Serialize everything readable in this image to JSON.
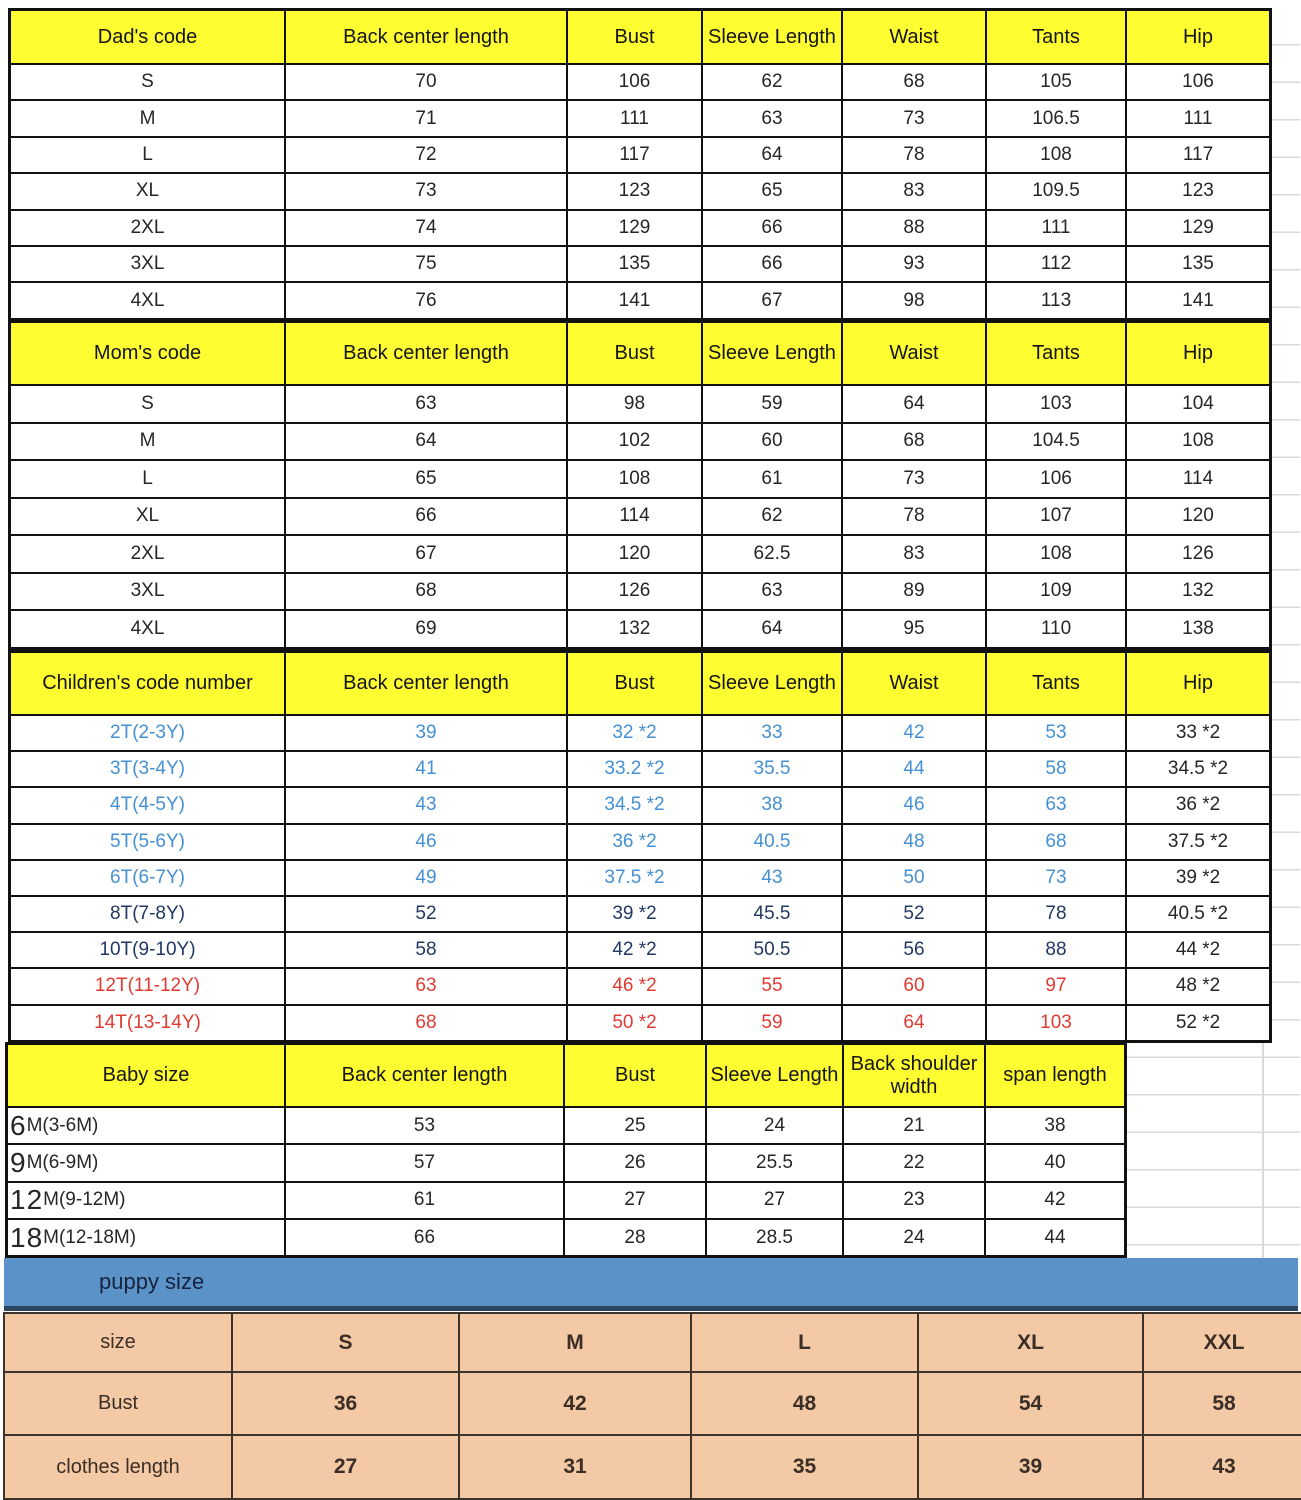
{
  "colors": {
    "header_yellow": "#FDFD32",
    "band_blue": "#5B93C9",
    "puppy_peach": "#F4C9A5",
    "children_text_blue": "#4490D2",
    "children_text_navy": "#203864",
    "children_text_red": "#E03A31",
    "grid_gray": "#D9D9D9",
    "border_black": "#111111"
  },
  "size_chart": {
    "sections": [
      {
        "name": "dad",
        "headers": [
          "Dad's code",
          "Back center length",
          "Bust",
          "Sleeve Length",
          "Waist",
          "Tants",
          "Hip"
        ],
        "rows": [
          {
            "code": "S",
            "cells": [
              "70",
              "106",
              "62",
              "68",
              "105",
              "106"
            ]
          },
          {
            "code": "M",
            "cells": [
              "71",
              "111",
              "63",
              "73",
              "106.5",
              "111"
            ]
          },
          {
            "code": "L",
            "cells": [
              "72",
              "117",
              "64",
              "78",
              "108",
              "117"
            ]
          },
          {
            "code": "XL",
            "cells": [
              "73",
              "123",
              "65",
              "83",
              "109.5",
              "123"
            ]
          },
          {
            "code": "2XL",
            "cells": [
              "74",
              "129",
              "66",
              "88",
              "111",
              "129"
            ]
          },
          {
            "code": "3XL",
            "cells": [
              "75",
              "135",
              "66",
              "93",
              "112",
              "135"
            ]
          },
          {
            "code": "4XL",
            "cells": [
              "76",
              "141",
              "67",
              "98",
              "113",
              "141"
            ]
          }
        ]
      },
      {
        "name": "mom",
        "headers": [
          "Mom's code",
          "Back center length",
          "Bust",
          "Sleeve Length",
          "Waist",
          "Tants",
          "Hip"
        ],
        "rows": [
          {
            "code": "S",
            "cells": [
              "63",
              "98",
              "59",
              "64",
              "103",
              "104"
            ]
          },
          {
            "code": "M",
            "cells": [
              "64",
              "102",
              "60",
              "68",
              "104.5",
              "108"
            ]
          },
          {
            "code": "L",
            "cells": [
              "65",
              "108",
              "61",
              "73",
              "106",
              "114"
            ]
          },
          {
            "code": "XL",
            "cells": [
              "66",
              "114",
              "62",
              "78",
              "107",
              "120"
            ]
          },
          {
            "code": "2XL",
            "cells": [
              "67",
              "120",
              "62.5",
              "83",
              "108",
              "126"
            ]
          },
          {
            "code": "3XL",
            "cells": [
              "68",
              "126",
              "63",
              "89",
              "109",
              "132"
            ]
          },
          {
            "code": "4XL",
            "cells": [
              "69",
              "132",
              "64",
              "95",
              "110",
              "138"
            ]
          }
        ]
      },
      {
        "name": "children",
        "headers": [
          "Children's code number",
          "Back center length",
          "Bust",
          "Sleeve Length",
          "Waist",
          "Tants",
          "Hip"
        ],
        "rows": [
          {
            "code": "2T(2-3Y)",
            "color": "blue",
            "cells": [
              "39",
              "32 *2",
              "33",
              "42",
              "53",
              "33 *2"
            ]
          },
          {
            "code": "3T(3-4Y)",
            "color": "blue",
            "cells": [
              "41",
              "33.2 *2",
              "35.5",
              "44",
              "58",
              "34.5 *2"
            ]
          },
          {
            "code": "4T(4-5Y)",
            "color": "blue",
            "cells": [
              "43",
              "34.5 *2",
              "38",
              "46",
              "63",
              "36 *2"
            ]
          },
          {
            "code": "5T(5-6Y)",
            "color": "blue",
            "cells": [
              "46",
              "36 *2",
              "40.5",
              "48",
              "68",
              "37.5 *2"
            ]
          },
          {
            "code": "6T(6-7Y)",
            "color": "blue",
            "cells": [
              "49",
              "37.5 *2",
              "43",
              "50",
              "73",
              "39 *2"
            ]
          },
          {
            "code": "8T(7-8Y)",
            "color": "navy",
            "cells": [
              "52",
              "39 *2",
              "45.5",
              "52",
              "78",
              "40.5 *2"
            ]
          },
          {
            "code": "10T(9-10Y)",
            "color": "navy",
            "cells": [
              "58",
              "42 *2",
              "50.5",
              "56",
              "88",
              "44 *2"
            ]
          },
          {
            "code": "12T(11-12Y)",
            "color": "red",
            "cells": [
              "63",
              "46 *2",
              "55",
              "60",
              "97",
              "48 *2"
            ]
          },
          {
            "code": "14T(13-14Y)",
            "color": "red",
            "cells": [
              "68",
              "50 *2",
              "59",
              "64",
              "103",
              "52 *2"
            ]
          }
        ]
      },
      {
        "name": "baby",
        "headers": [
          "Baby size",
          "Back center length",
          "Bust",
          "Sleeve Length",
          "Back shoulder width",
          "span length"
        ],
        "rows": [
          {
            "label_big": "6",
            "label_rest": "M(3-6M)",
            "cells": [
              "53",
              "25",
              "24",
              "21",
              "38"
            ]
          },
          {
            "label_big": "9",
            "label_rest": "M(6-9M)",
            "cells": [
              "57",
              "26",
              "25.5",
              "22",
              "40"
            ]
          },
          {
            "label_big": "12",
            "label_rest": "M(9-12M)",
            "cells": [
              "61",
              "27",
              "27",
              "23",
              "42"
            ]
          },
          {
            "label_big": "18",
            "label_rest": "M(12-18M)",
            "cells": [
              "66",
              "28",
              "28.5",
              "24",
              "44"
            ]
          }
        ]
      }
    ]
  },
  "puppy": {
    "band_label": "puppy size",
    "rows": [
      [
        "size",
        "S",
        "M",
        "L",
        "XL",
        "XXL"
      ],
      [
        "Bust",
        "36",
        "42",
        "48",
        "54",
        "58"
      ],
      [
        "clothes length",
        "27",
        "31",
        "35",
        "39",
        "43"
      ]
    ]
  }
}
